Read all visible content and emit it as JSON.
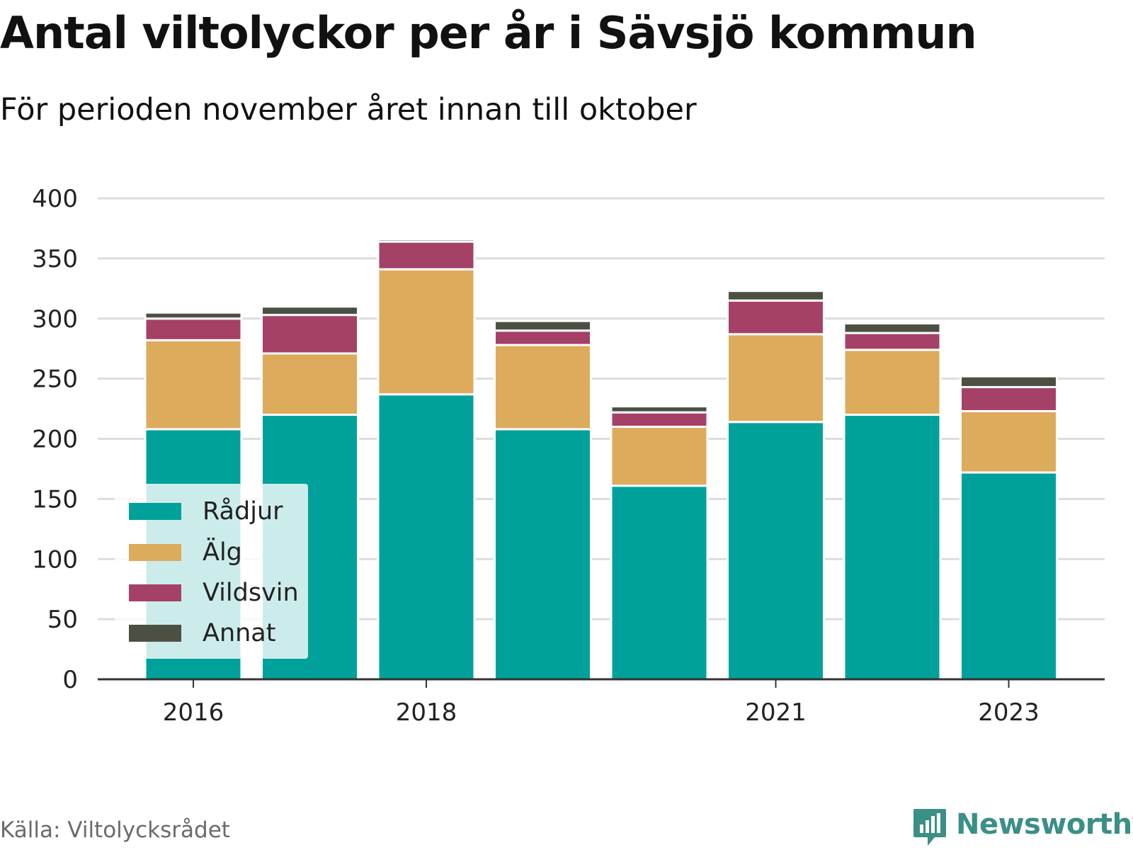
{
  "title": "Antal viltolyckor per år i Sävsjö kommun",
  "subtitle": "För perioden november året innan till oktober",
  "source": "Källa: Viltolycksrådet",
  "brand": "Newsworthy",
  "chart_data": {
    "type": "bar",
    "stacked": true,
    "categories": [
      "2016",
      "2017",
      "2018",
      "2019",
      "2020",
      "2021",
      "2022",
      "2023"
    ],
    "x_tick_labels": [
      "2016",
      "2018",
      "2021",
      "2023"
    ],
    "ylim": [
      0,
      400
    ],
    "y_ticks": [
      0,
      50,
      100,
      150,
      200,
      250,
      300,
      350,
      400
    ],
    "grid": true,
    "legend_position": "bottom-left",
    "series": [
      {
        "name": "Rådjur",
        "color": "#00a19a",
        "values": [
          208,
          220,
          237,
          208,
          161,
          214,
          220,
          172
        ]
      },
      {
        "name": "Älg",
        "color": "#dcab5b",
        "values": [
          74,
          51,
          104,
          70,
          49,
          73,
          54,
          51
        ]
      },
      {
        "name": "Vildsvin",
        "color": "#a54166",
        "values": [
          18,
          32,
          23,
          12,
          12,
          28,
          14,
          20
        ]
      },
      {
        "name": "Annat",
        "color": "#4c5043",
        "values": [
          5,
          7,
          2,
          8,
          5,
          8,
          8,
          9
        ]
      }
    ]
  }
}
